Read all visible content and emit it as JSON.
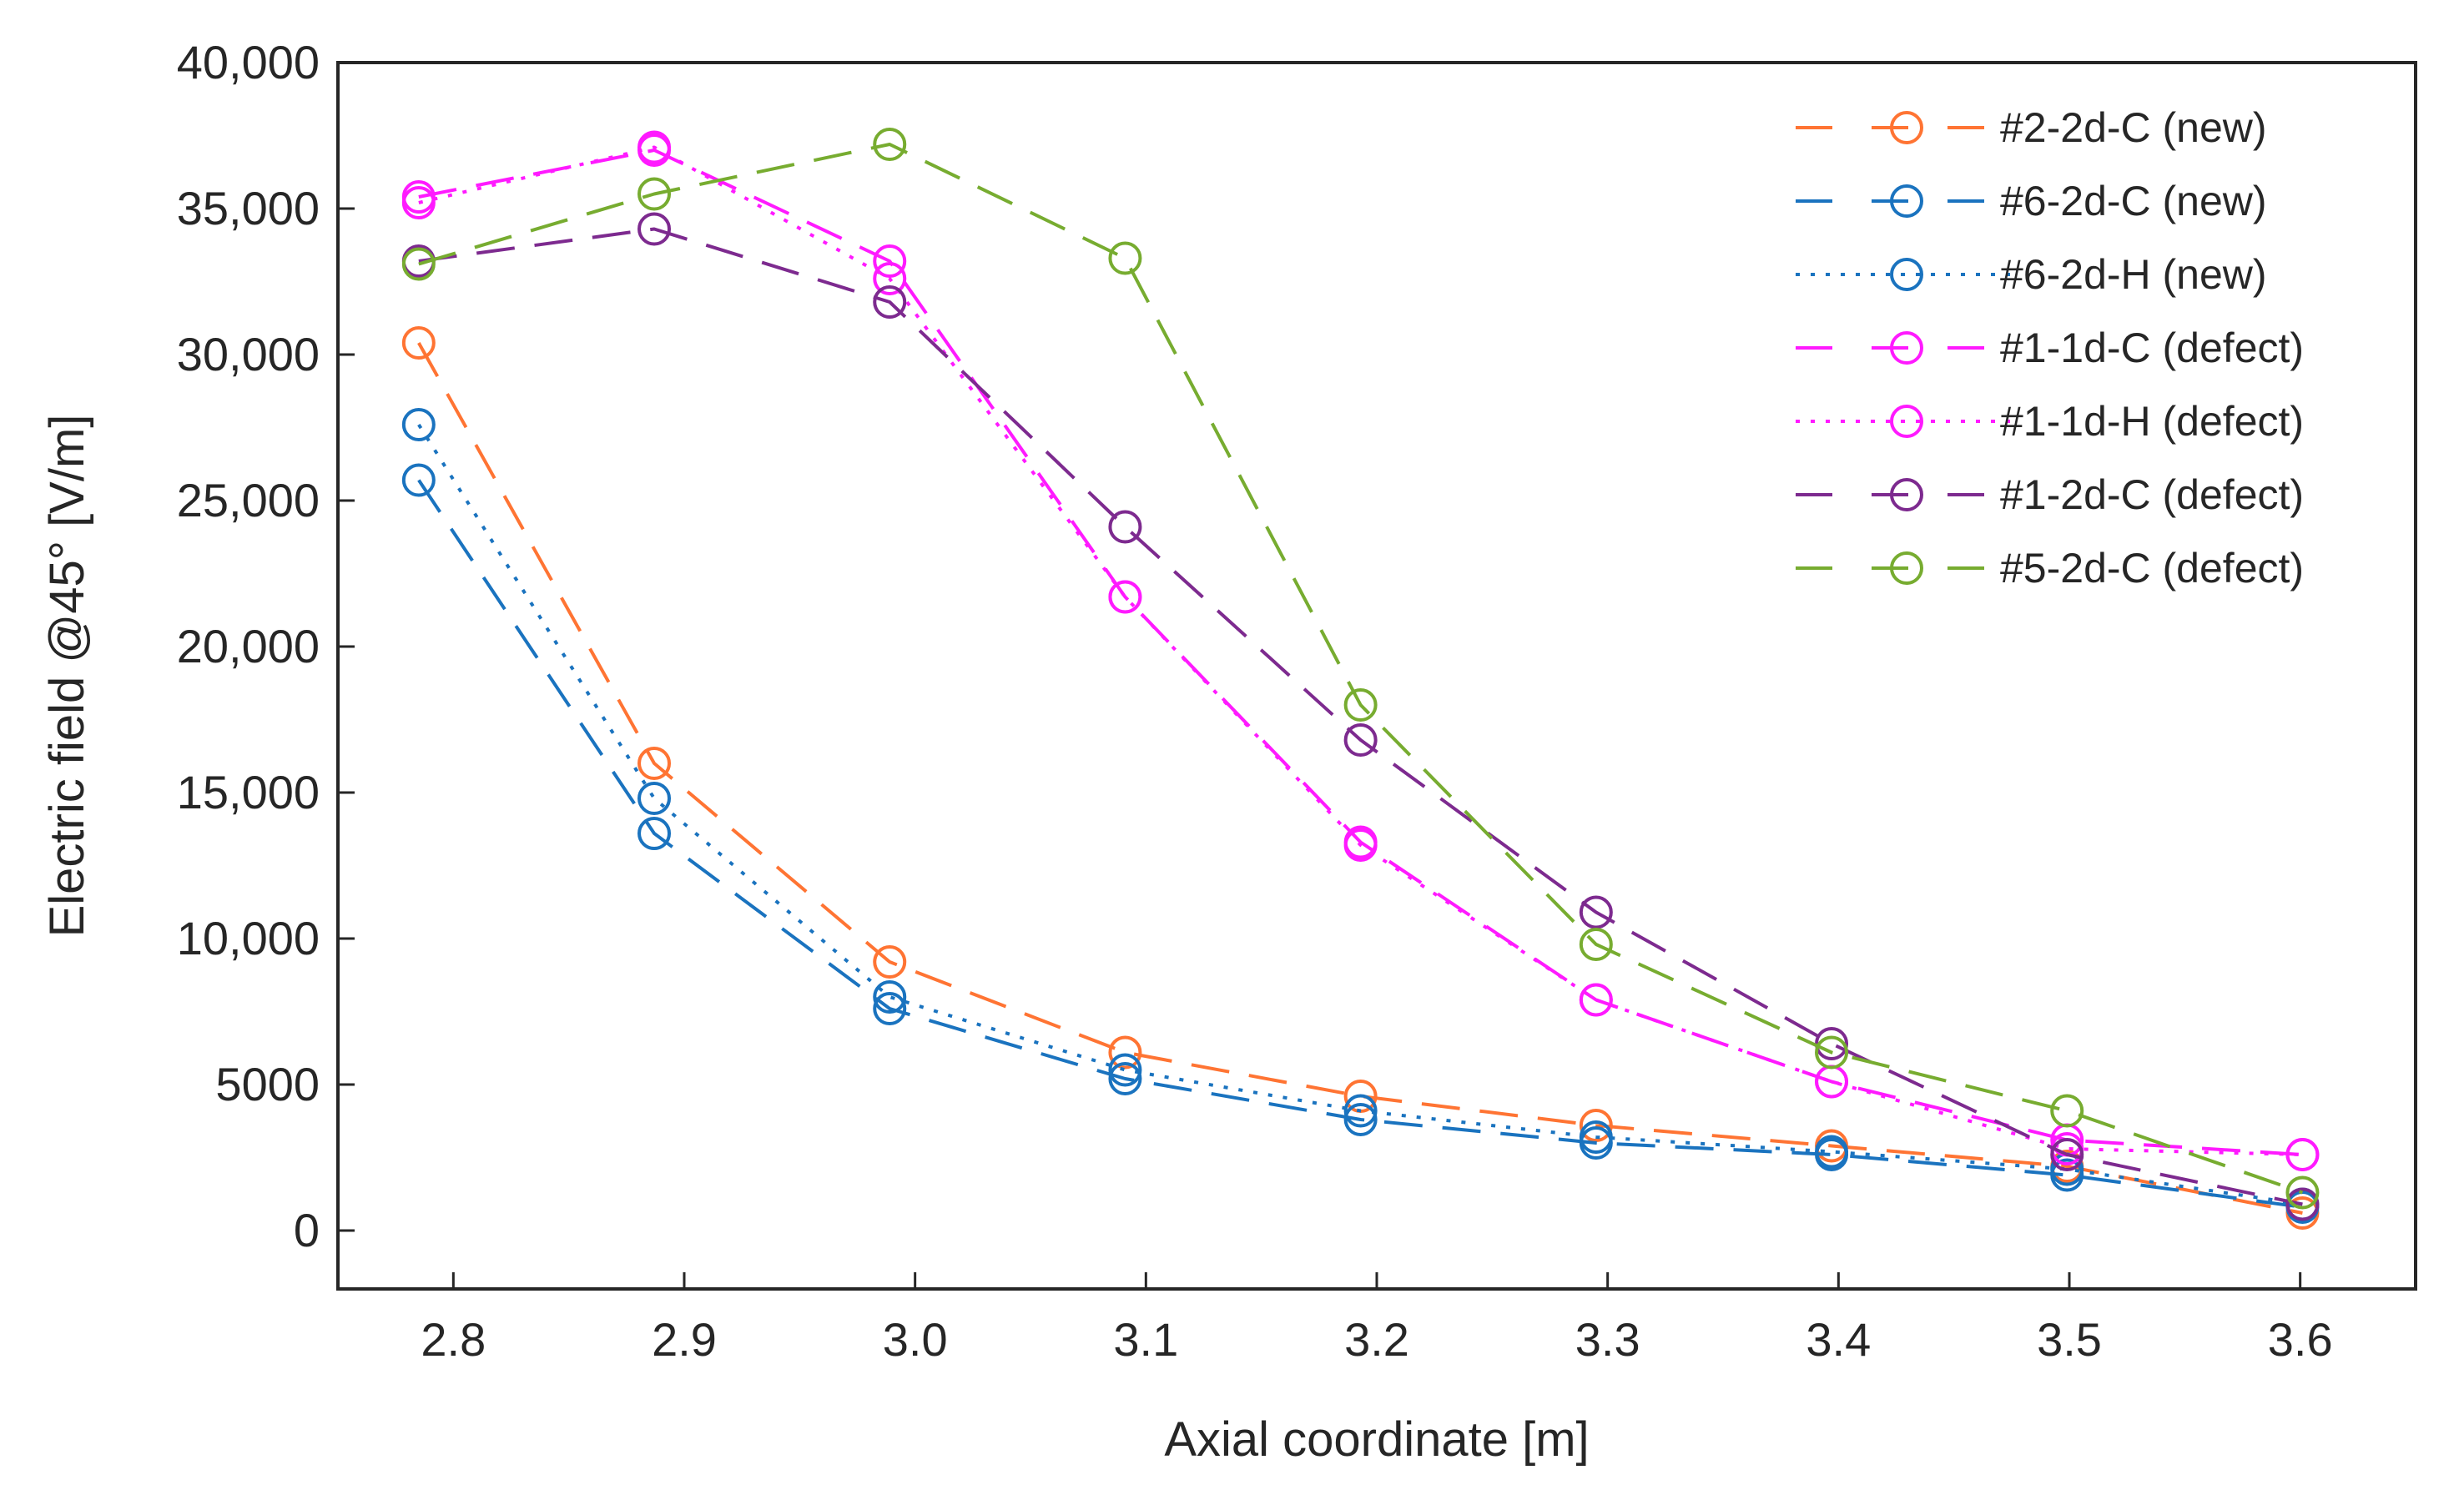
{
  "chart_data": {
    "type": "line",
    "title": "",
    "xlabel": "Axial coordinate [m]",
    "ylabel": "Electric field @45° [V/m]",
    "xlim": [
      2.75,
      3.65
    ],
    "ylim": [
      -2000,
      40000
    ],
    "xticks": [
      2.8,
      2.9,
      3.0,
      3.1,
      3.2,
      3.3,
      3.4,
      3.5,
      3.6
    ],
    "xtick_labels": [
      "2.8",
      "2.9",
      "3.0",
      "3.1",
      "3.2",
      "3.3",
      "3.4",
      "3.5",
      "3.6"
    ],
    "yticks": [
      0,
      5000,
      10000,
      15000,
      20000,
      25000,
      30000,
      35000,
      40000
    ],
    "ytick_labels": [
      "0",
      "5000",
      "10,000",
      "15,000",
      "20,000",
      "25,000",
      "30,000",
      "35,000",
      "40,000"
    ],
    "legend_position": "top-right",
    "grid": false,
    "series": [
      {
        "name": "#2-2d-C (new)",
        "color": "#ff7433",
        "dash": "dashed",
        "marker": "circle",
        "x": [
          2.785,
          2.887,
          2.989,
          3.091,
          3.193,
          3.295,
          3.397,
          3.499,
          3.601
        ],
        "y": [
          30400,
          16000,
          9200,
          6100,
          4600,
          3600,
          2900,
          2200,
          600
        ]
      },
      {
        "name": "#6-2d-C (new)",
        "color": "#1a73bf",
        "dash": "dashed",
        "marker": "circle",
        "x": [
          2.785,
          2.887,
          2.989,
          3.091,
          3.193,
          3.295,
          3.397,
          3.499,
          3.601
        ],
        "y": [
          25700,
          13600,
          7600,
          5200,
          3800,
          3000,
          2600,
          1900,
          800
        ]
      },
      {
        "name": "#6-2d-H (new)",
        "color": "#1a73bf",
        "dash": "dotted",
        "marker": "circle",
        "x": [
          2.785,
          2.887,
          2.989,
          3.091,
          3.193,
          3.295,
          3.397,
          3.499,
          3.601
        ],
        "y": [
          27600,
          14800,
          8000,
          5500,
          4100,
          3200,
          2700,
          2100,
          900
        ]
      },
      {
        "name": "#1-1d-C (defect)",
        "color": "#ff1aff",
        "dash": "dashed",
        "marker": "circle",
        "x": [
          2.785,
          2.887,
          2.989,
          3.091,
          3.193,
          3.295,
          3.397,
          3.499,
          3.601
        ],
        "y": [
          35400,
          37000,
          33200,
          21700,
          13300,
          7900,
          5100,
          3100,
          2600
        ]
      },
      {
        "name": "#1-1d-H (defect)",
        "color": "#ff1aff",
        "dash": "dotted",
        "marker": "circle",
        "x": [
          2.785,
          2.887,
          2.989,
          3.091,
          3.193,
          3.295,
          3.397,
          3.499,
          3.601
        ],
        "y": [
          35200,
          37100,
          32600,
          21700,
          13200,
          7900,
          5100,
          2800,
          2600
        ]
      },
      {
        "name": "#1-2d-C (defect)",
        "color": "#7d2a8f",
        "dash": "dashed",
        "marker": "circle",
        "x": [
          2.785,
          2.887,
          2.989,
          3.091,
          3.193,
          3.295,
          3.397,
          3.499,
          3.601
        ],
        "y": [
          33200,
          34300,
          31800,
          24100,
          16800,
          10900,
          6400,
          2600,
          900
        ]
      },
      {
        "name": "#5-2d-C (defect)",
        "color": "#77ac30",
        "dash": "dashed",
        "marker": "circle",
        "x": [
          2.785,
          2.887,
          2.989,
          3.091,
          3.193,
          3.295,
          3.397,
          3.499,
          3.601
        ],
        "y": [
          33100,
          35500,
          37200,
          33300,
          18000,
          9800,
          6100,
          4100,
          1300
        ]
      }
    ]
  }
}
